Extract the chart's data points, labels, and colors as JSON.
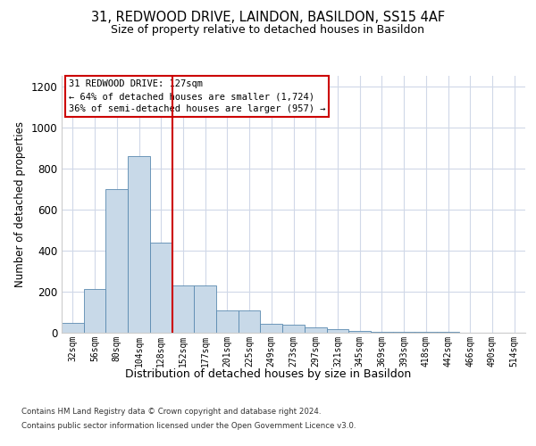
{
  "title_line1": "31, REDWOOD DRIVE, LAINDON, BASILDON, SS15 4AF",
  "title_line2": "Size of property relative to detached houses in Basildon",
  "xlabel": "Distribution of detached houses by size in Basildon",
  "ylabel": "Number of detached properties",
  "categories": [
    "32sqm",
    "56sqm",
    "80sqm",
    "104sqm",
    "128sqm",
    "152sqm",
    "177sqm",
    "201sqm",
    "225sqm",
    "249sqm",
    "273sqm",
    "297sqm",
    "321sqm",
    "345sqm",
    "369sqm",
    "393sqm",
    "418sqm",
    "442sqm",
    "466sqm",
    "490sqm",
    "514sqm"
  ],
  "values": [
    45,
    210,
    700,
    860,
    435,
    230,
    230,
    105,
    105,
    40,
    37,
    25,
    15,
    7,
    4,
    2,
    1,
    1,
    0,
    0,
    0
  ],
  "bar_color": "#c8d9e8",
  "bar_edge_color": "#5a8ab0",
  "vline_color": "#cc0000",
  "vline_pos": 4.5,
  "annotation_text": "31 REDWOOD DRIVE: 127sqm\n← 64% of detached houses are smaller (1,724)\n36% of semi-detached houses are larger (957) →",
  "annotation_box_color": "#ffffff",
  "annotation_box_edge": "#cc0000",
  "background_color": "#ffffff",
  "grid_color": "#d0d8e8",
  "ylim": [
    0,
    1250
  ],
  "yticks": [
    0,
    200,
    400,
    600,
    800,
    1000,
    1200
  ],
  "footer_line1": "Contains HM Land Registry data © Crown copyright and database right 2024.",
  "footer_line2": "Contains public sector information licensed under the Open Government Licence v3.0."
}
